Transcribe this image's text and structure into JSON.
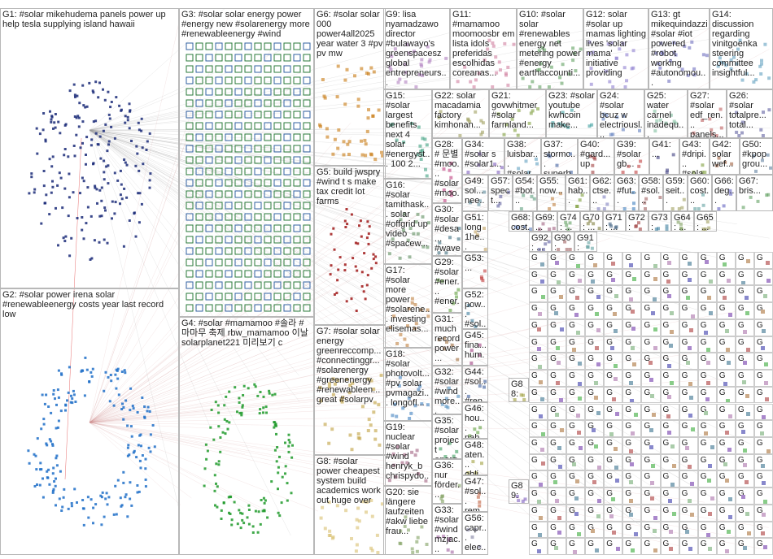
{
  "groups": [
    {
      "id": "G1",
      "text": "G1: #solar mikehudema panels power up help tesla supplying island hawaii"
    },
    {
      "id": "G2",
      "text": "G2: #solar power irena solar #renewableenergy costs year last record low"
    },
    {
      "id": "G3",
      "text": "G3: #solar solar energy power #energy new #solarenergy more #renewableenergy #wind"
    },
    {
      "id": "G4",
      "text": "G4: #solar #mamamoo #솔라 # 마마무 축제 rbw_mamamoo 이날 solarplanet221 미리보기 c"
    },
    {
      "id": "G5",
      "text": "G5: build jwspry #wind t s make tax credit lot farms"
    },
    {
      "id": "G6",
      "text": "G6: #solar solar 000 power4all2025 year water 3 #pv pv mw"
    },
    {
      "id": "G7",
      "text": "G7: #solar solar energy greenreccomp... #connectinggr... #solarenergy #greenenergy #renewableen... great #solarpv"
    },
    {
      "id": "G8",
      "text": "G8: #solar power cheapest system build academics work out huge over"
    },
    {
      "id": "G9",
      "text": "G9: lisa nyamadzawo director #bulawayo's greenspacesz global entrepreneurs..."
    },
    {
      "id": "G10",
      "text": "G10: #solar solar #renewables energy net metering power #energy earthaccounti..."
    },
    {
      "id": "G11",
      "text": "G11: #mamamoo moomoosbr em lista idols preferidas escolhidas coreanas..."
    },
    {
      "id": "G12",
      "text": "G12: solar #solar up mamas lighting lives 'solar mama' initiative providing"
    },
    {
      "id": "G13",
      "text": "G13: gt mikequindazzi #solar #iot powered #robot working #autonomou..."
    },
    {
      "id": "G14",
      "text": "G14: discussion regarding vinitgoenka steering committee insightful..."
    },
    {
      "id": "G15",
      "text": "G15: #solar largest benefits next 4 solar #energyst... 100 2..."
    },
    {
      "id": "G16",
      "text": "G16: #solar tamithask... solar #offgrid up video #spacew..."
    },
    {
      "id": "G17",
      "text": "G17: #solar more power #solarene... investing elisemas..."
    },
    {
      "id": "G18",
      "text": "G18: #solar photovolt... #pv solar pvmagazi... longofl..."
    },
    {
      "id": "G19",
      "text": "G19: nuclear #solar #wind henryk_b chrispydo..."
    },
    {
      "id": "G20",
      "text": "G20: sie längere laufzeiten #akw liebe frau..."
    },
    {
      "id": "G21",
      "text": "G21: govwhitmer #solar farmland..."
    },
    {
      "id": "G22",
      "text": "G22: solar macadamia factory kimhonan..."
    },
    {
      "id": "G23",
      "text": "G23: #solar youtube kwhcoin make..."
    },
    {
      "id": "G24",
      "text": "G24: #solar bcuz w electriousl..."
    },
    {
      "id": "G25",
      "text": "G25: water carnel inadequ..."
    },
    {
      "id": "G26",
      "text": "G26: #solar totalpre... total..."
    },
    {
      "id": "G27",
      "text": "G27: #solar edf_ren... panels..."
    },
    {
      "id": "G28",
      "text": "G28: # 문별 #moo... #solar #moo..."
    },
    {
      "id": "G29",
      "text": "G29: #solar #ener... #ener... #gree..."
    },
    {
      "id": "G30",
      "text": "G30: #solar #desa... #wave #geot..."
    },
    {
      "id": "G31",
      "text": "G31: much record power..."
    },
    {
      "id": "G32",
      "text": "G32: #solar #wind more..."
    },
    {
      "id": "G33",
      "text": "G33: #solar #wind mzjac..."
    },
    {
      "id": "G34",
      "text": "G34: #solar s #solar1..."
    },
    {
      "id": "G35",
      "text": "G35: #solar project energ..."
    },
    {
      "id": "G36",
      "text": "G36: nur förder..."
    },
    {
      "id": "G37",
      "text": "G37: stormc... superb..."
    },
    {
      "id": "G38",
      "text": "G38: luisbar... #solar..."
    },
    {
      "id": "G39",
      "text": "G39: #solar gb..."
    },
    {
      "id": "G40",
      "text": "G40: #gard... up"
    },
    {
      "id": "G41",
      "text": "G41: ..."
    },
    {
      "id": "G42",
      "text": "G42: solar wef..."
    },
    {
      "id": "G43",
      "text": "G43: #dripi... #sola..."
    },
    {
      "id": "G44",
      "text": "G44: #sol... #ren..."
    },
    {
      "id": "G45",
      "text": "G45: fina... hum..."
    },
    {
      "id": "G46",
      "text": "G46: hou... nah..."
    },
    {
      "id": "G47",
      "text": "G47: #sol... rem..."
    },
    {
      "id": "G48",
      "text": "G48: aten... obli..."
    },
    {
      "id": "G49",
      "text": "G49: sol... nee..."
    },
    {
      "id": "G50",
      "text": "G50: #kpop grou..."
    },
    {
      "id": "G51",
      "text": "G51: long 1he..."
    },
    {
      "id": "G52",
      "text": "G52: pow... #sol..."
    },
    {
      "id": "G53",
      "text": "G53: ..."
    },
    {
      "id": "G54",
      "text": "G54: #bot..."
    },
    {
      "id": "G55",
      "text": "G55: now..."
    },
    {
      "id": "G56",
      "text": "G56: capr... elec..."
    },
    {
      "id": "G57",
      "text": "G57: spect..."
    },
    {
      "id": "G58",
      "text": "G58: #sol..."
    },
    {
      "id": "G59",
      "text": "G59: seit..."
    },
    {
      "id": "G60",
      "text": "G60: cost..."
    },
    {
      "id": "G61",
      "text": "G61: hab..."
    },
    {
      "id": "G62",
      "text": "G62: ctse..."
    },
    {
      "id": "G63",
      "text": "G63: #fut..."
    },
    {
      "id": "G64",
      "text": "G64: ..."
    },
    {
      "id": "G65",
      "text": "G65: ..."
    },
    {
      "id": "G66",
      "text": "G66: deg..."
    },
    {
      "id": "G67",
      "text": "G67: bris..."
    },
    {
      "id": "G68",
      "text": "G68: cost..."
    },
    {
      "id": "G69",
      "text": "G69: ..."
    },
    {
      "id": "G70",
      "text": "G70: ..."
    },
    {
      "id": "G71",
      "text": "G71: ..."
    },
    {
      "id": "G72",
      "text": "G72: #sol..."
    },
    {
      "id": "G73",
      "text": "G73: sun..."
    },
    {
      "id": "G74",
      "text": "G74: ..."
    },
    {
      "id": "G88",
      "text": "G88: ..."
    },
    {
      "id": "G89",
      "text": "G89: ..."
    },
    {
      "id": "G90",
      "text": "G90: sol..."
    },
    {
      "id": "G91",
      "text": "G91: per..."
    },
    {
      "id": "G92",
      "text": "G92: ..."
    }
  ],
  "tiny_label": "G"
}
